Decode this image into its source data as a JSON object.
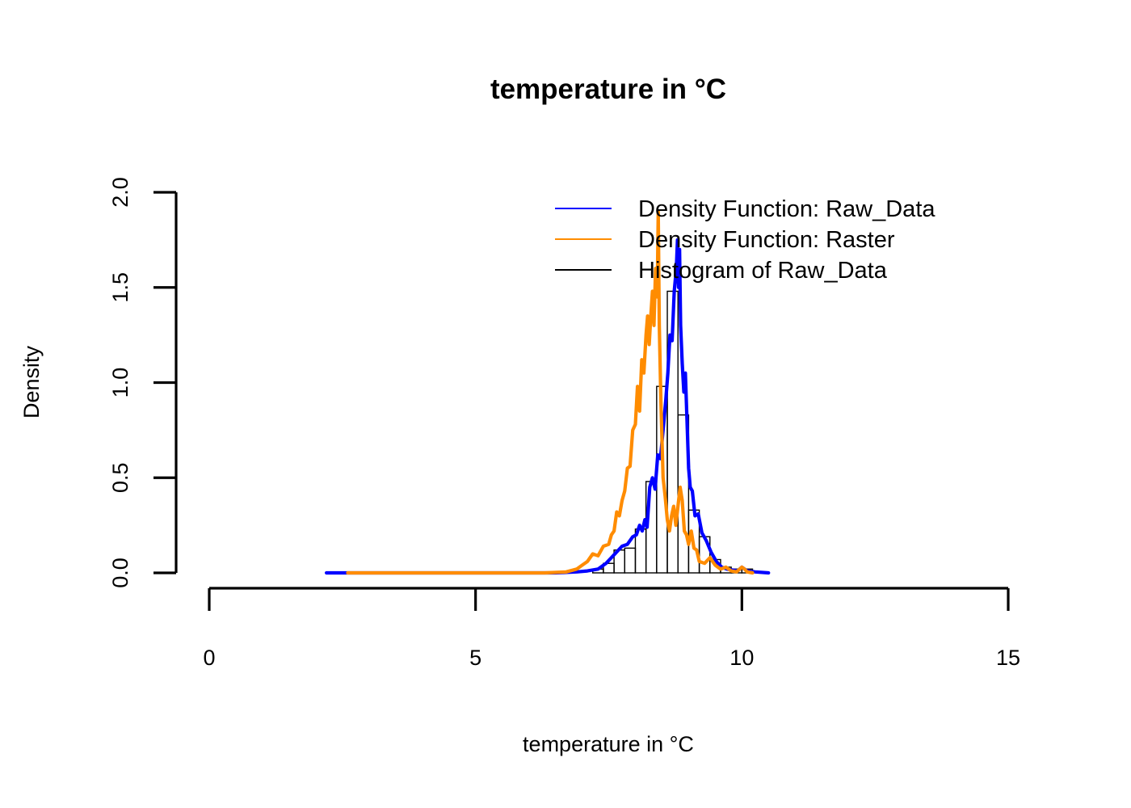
{
  "chart_data": {
    "type": "line",
    "title": "temperature in °C",
    "xlabel": "temperature in °C",
    "ylabel": "Density",
    "xlim": [
      0,
      15
    ],
    "ylim": [
      0,
      2
    ],
    "x_ticks": [
      0,
      5,
      10,
      15
    ],
    "y_ticks": [
      "0.0",
      "0.5",
      "1.0",
      "1.5",
      "2.0"
    ],
    "legend": {
      "position": "top-right",
      "entries": [
        {
          "label": "Density Function: Raw_Data",
          "color": "#0000ff"
        },
        {
          "label": "Density Function: Raster",
          "color": "#ff8c00"
        },
        {
          "label": "Histogram of Raw_Data",
          "color": "#000000"
        }
      ]
    },
    "histogram": {
      "name": "Histogram of Raw_Data",
      "bin_width": 0.2,
      "bins": [
        {
          "x0": 7.2,
          "x1": 7.4,
          "density": 0.02
        },
        {
          "x0": 7.4,
          "x1": 7.6,
          "density": 0.05
        },
        {
          "x0": 7.6,
          "x1": 7.8,
          "density": 0.12
        },
        {
          "x0": 7.8,
          "x1": 8.0,
          "density": 0.13
        },
        {
          "x0": 8.0,
          "x1": 8.2,
          "density": 0.23
        },
        {
          "x0": 8.2,
          "x1": 8.4,
          "density": 0.48
        },
        {
          "x0": 8.4,
          "x1": 8.6,
          "density": 0.98
        },
        {
          "x0": 8.6,
          "x1": 8.8,
          "density": 1.48
        },
        {
          "x0": 8.8,
          "x1": 9.0,
          "density": 0.83
        },
        {
          "x0": 9.0,
          "x1": 9.2,
          "density": 0.33
        },
        {
          "x0": 9.2,
          "x1": 9.4,
          "density": 0.19
        },
        {
          "x0": 9.4,
          "x1": 9.6,
          "density": 0.07
        },
        {
          "x0": 9.6,
          "x1": 9.8,
          "density": 0.03
        },
        {
          "x0": 9.8,
          "x1": 10.0,
          "density": 0.02
        },
        {
          "x0": 10.0,
          "x1": 10.2,
          "density": 0.02
        }
      ]
    },
    "series": [
      {
        "name": "Density Function: Raw_Data",
        "color": "#0000ff",
        "x": [
          2.2,
          3.0,
          4.0,
          5.0,
          6.0,
          6.5,
          6.9,
          7.1,
          7.3,
          7.45,
          7.55,
          7.65,
          7.75,
          7.85,
          7.95,
          8.02,
          8.08,
          8.13,
          8.18,
          8.22,
          8.27,
          8.32,
          8.37,
          8.42,
          8.47,
          8.52,
          8.57,
          8.61,
          8.65,
          8.69,
          8.73,
          8.77,
          8.79,
          8.81,
          8.83,
          8.85,
          8.88,
          8.91,
          8.94,
          8.97,
          9.0,
          9.03,
          9.07,
          9.12,
          9.18,
          9.25,
          9.33,
          9.42,
          9.52,
          9.62,
          9.72,
          9.82,
          9.92,
          10.0,
          10.1,
          10.25,
          10.5
        ],
        "y": [
          0.0,
          0.0,
          0.0,
          0.0,
          0.0,
          0.0,
          0.005,
          0.01,
          0.02,
          0.05,
          0.08,
          0.11,
          0.14,
          0.15,
          0.19,
          0.2,
          0.25,
          0.22,
          0.28,
          0.24,
          0.45,
          0.5,
          0.44,
          0.62,
          0.6,
          0.75,
          0.9,
          1.05,
          1.25,
          1.22,
          1.48,
          1.6,
          1.75,
          1.5,
          1.7,
          1.3,
          1.1,
          0.95,
          1.05,
          0.8,
          0.55,
          0.45,
          0.43,
          0.3,
          0.31,
          0.21,
          0.17,
          0.11,
          0.06,
          0.03,
          0.02,
          0.015,
          0.01,
          0.03,
          0.01,
          0.005,
          0.0
        ]
      },
      {
        "name": "Density Function: Raster",
        "color": "#ff8c00",
        "x": [
          2.6,
          3.5,
          4.5,
          5.5,
          6.3,
          6.7,
          6.9,
          7.0,
          7.1,
          7.2,
          7.3,
          7.4,
          7.5,
          7.55,
          7.6,
          7.65,
          7.7,
          7.75,
          7.8,
          7.85,
          7.9,
          7.95,
          8.0,
          8.04,
          8.08,
          8.12,
          8.16,
          8.2,
          8.23,
          8.26,
          8.29,
          8.32,
          8.35,
          8.38,
          8.41,
          8.43,
          8.45,
          8.48,
          8.52,
          8.56,
          8.6,
          8.64,
          8.68,
          8.72,
          8.76,
          8.8,
          8.84,
          8.88,
          8.92,
          8.96,
          9.0,
          9.05,
          9.1,
          9.15,
          9.2,
          9.3,
          9.4,
          9.5,
          9.6,
          9.7,
          9.8,
          9.9,
          10.0,
          10.05,
          10.1,
          10.2
        ],
        "y": [
          0.0,
          0.0,
          0.0,
          0.0,
          0.0,
          0.005,
          0.02,
          0.04,
          0.06,
          0.1,
          0.09,
          0.14,
          0.15,
          0.2,
          0.22,
          0.32,
          0.3,
          0.38,
          0.43,
          0.55,
          0.56,
          0.75,
          0.78,
          0.98,
          0.85,
          1.12,
          1.05,
          1.25,
          1.35,
          1.2,
          1.35,
          1.48,
          1.3,
          1.6,
          1.45,
          1.9,
          1.3,
          0.9,
          0.5,
          0.4,
          0.28,
          0.22,
          0.3,
          0.35,
          0.25,
          0.35,
          0.45,
          0.38,
          0.22,
          0.2,
          0.15,
          0.22,
          0.13,
          0.12,
          0.06,
          0.05,
          0.08,
          0.04,
          0.02,
          0.03,
          0.01,
          0.005,
          0.03,
          0.02,
          0.005,
          0.0
        ]
      }
    ]
  }
}
